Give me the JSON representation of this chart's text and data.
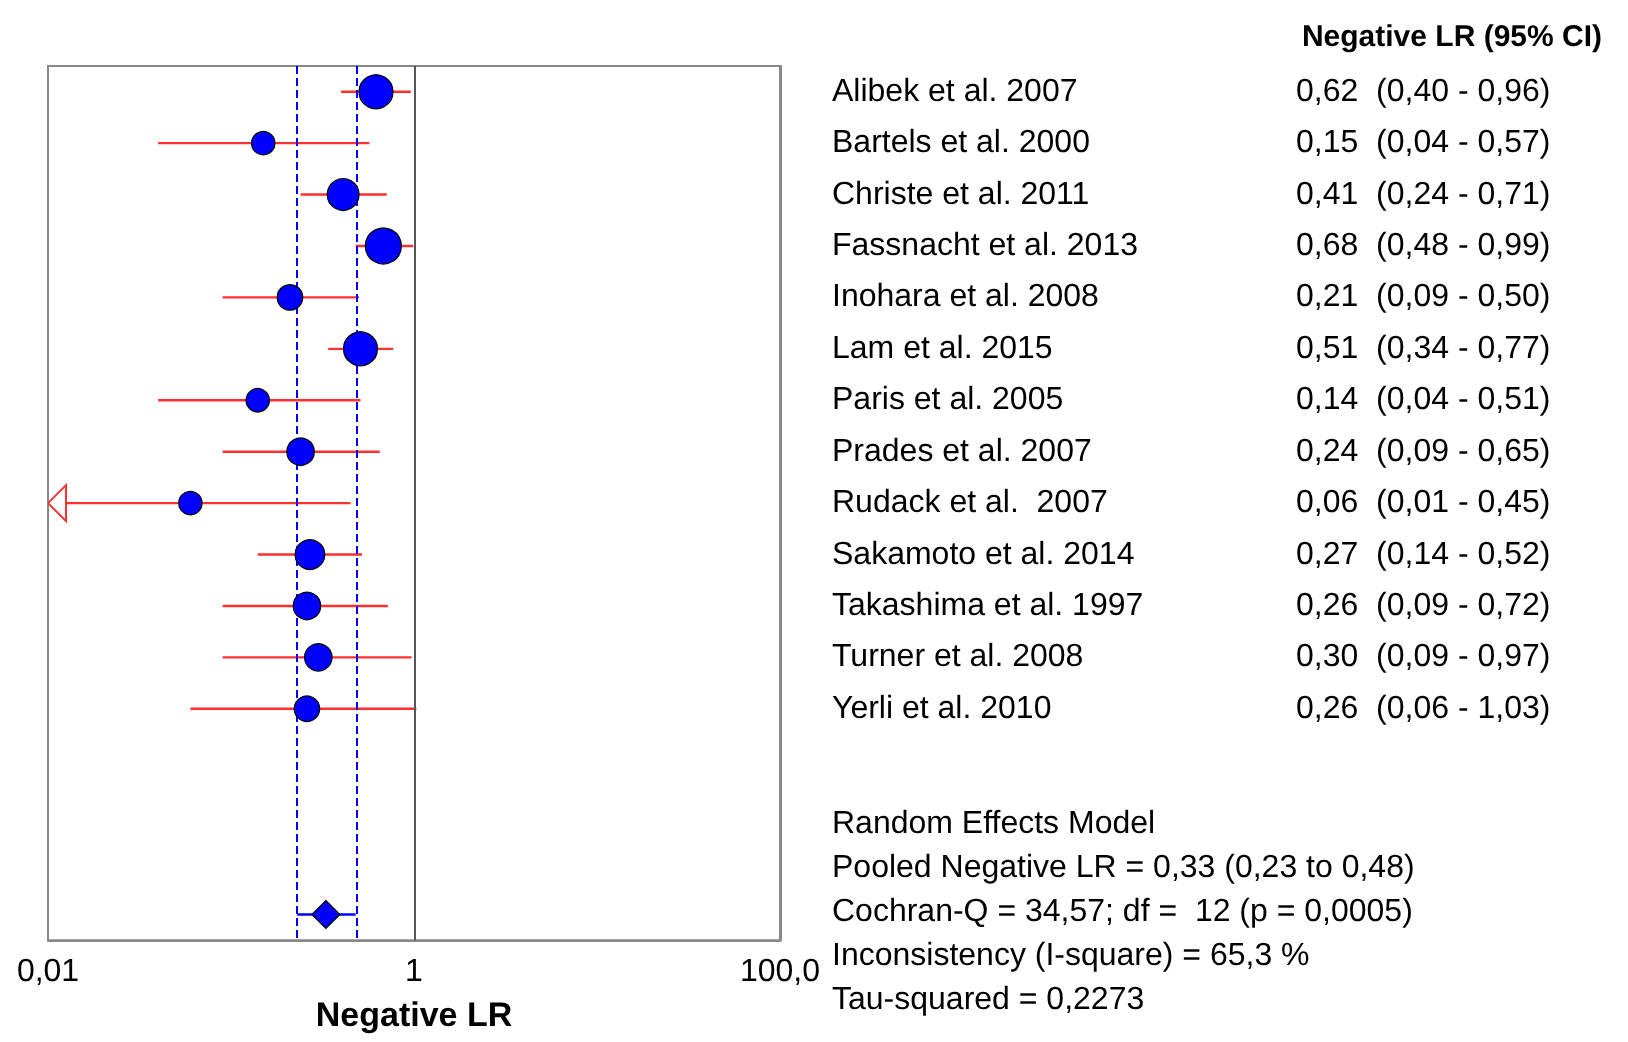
{
  "chart_data": {
    "type": "scatter",
    "title": "Negative LR (95% CI)",
    "xlabel": "Negative LR",
    "orientation": "horizontal",
    "log": "x",
    "categories": [
      "Alibek et al. 2007",
      "Bartels et al. 2000",
      "Christe et al. 2011",
      "Fassnacht et al. 2013",
      "Inohara et al. 2008",
      "Lam et al. 2015",
      "Paris et al. 2005",
      "Prades et al. 2007",
      "Rudack et al.  2007",
      "Sakamoto et al. 2014",
      "Takashima et al. 1997",
      "Turner et al. 2008",
      "Yerli et al. 2010",
      null,
      null,
      null,
      null
    ],
    "xlim": [
      0.01,
      100
    ],
    "xticks": [
      {
        "value": 0.01,
        "label": "0,01"
      },
      {
        "value": 1,
        "label": "1"
      },
      {
        "value": 100,
        "label": "100,0"
      }
    ],
    "series": [
      {
        "type": "bubble",
        "marker": "circle",
        "color": "#0000ff",
        "values": [
          0.62,
          0.15,
          0.41,
          0.68,
          0.21,
          0.51,
          0.14,
          0.24,
          0.06,
          0.27,
          0.26,
          0.3,
          0.26,
          null,
          null,
          null,
          null
        ],
        "sizes": [
          0.89,
          0.42,
          0.78,
          1,
          0.5,
          0.89,
          0.42,
          0.58,
          0.42,
          0.68,
          0.58,
          0.58,
          0.5,
          null,
          null,
          null,
          null
        ],
        "errors": [
          [
            0.4,
            0.96
          ],
          [
            0.04,
            0.57
          ],
          [
            0.24,
            0.71
          ],
          [
            0.48,
            0.99
          ],
          [
            0.09,
            0.5
          ],
          [
            0.34,
            0.77
          ],
          [
            0.04,
            0.51
          ],
          [
            0.09,
            0.65
          ],
          [
            0.01,
            0.45
          ],
          [
            0.14,
            0.52
          ],
          [
            0.09,
            0.72
          ],
          [
            0.09,
            0.97
          ],
          [
            0.06,
            1.03
          ],
          null,
          null,
          null,
          null
        ],
        "value_labels": [
          "0,62  (0,40 - 0,96)",
          "0,15  (0,04 - 0,57)",
          "0,41  (0,24 - 0,71)",
          "0,68  (0,48 - 0,99)",
          "0,21  (0,09 - 0,50)",
          "0,51  (0,34 - 0,77)",
          "0,14  (0,04 - 0,51)",
          "0,24  (0,09 - 0,65)",
          "0,06  (0,01 - 0,45)",
          "0,27  (0,14 - 0,52)",
          "0,26  (0,09 - 0,72)",
          "0,30  (0,09 - 0,97)",
          "0,26  (0,06 - 1,03)",
          null,
          null,
          null,
          null
        ]
      },
      {
        "type": "scatter",
        "marker": "diamond",
        "color": "#0000ff",
        "values": [
          null,
          null,
          null,
          null,
          null,
          null,
          null,
          null,
          null,
          null,
          null,
          null,
          null,
          null,
          null,
          null,
          0.33
        ],
        "errors": [
          null,
          null,
          null,
          null,
          null,
          null,
          null,
          null,
          null,
          null,
          null,
          null,
          null,
          null,
          null,
          null,
          [
            0.23,
            0.48
          ]
        ]
      }
    ],
    "ref_lines": [
      {
        "axis": "x",
        "value": 1,
        "color": "#555555",
        "line_style": "solid"
      },
      {
        "axis": "x",
        "value": 0.23,
        "color": "#0000ff",
        "line_style": "dashed"
      },
      {
        "axis": "x",
        "value": 0.48,
        "color": "#0000ff",
        "line_style": "dashed"
      }
    ],
    "annotations": [
      "Random Effects Model",
      "Pooled Negative LR = 0,33 (0,23 to 0,48)",
      "Cochran-Q = 34,57; df =  12 (p = 0,0005)",
      "Inconsistency (I-square) = 65,3 %",
      "Tau-squared = 0,2273"
    ]
  }
}
